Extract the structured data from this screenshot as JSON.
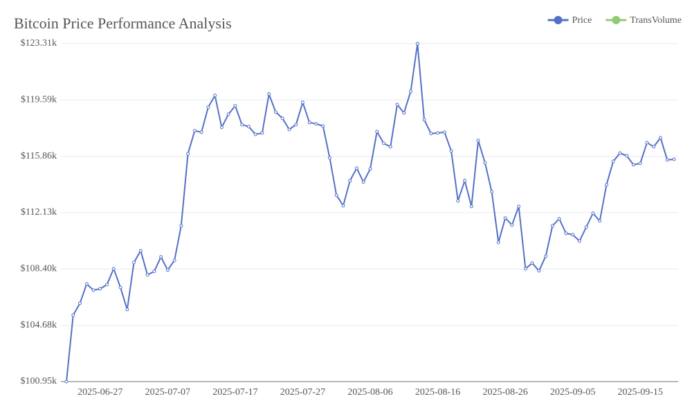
{
  "chart_data": {
    "type": "line",
    "title": "Bitcoin Price Performance Analysis",
    "categories": [
      null,
      null,
      null,
      null,
      null,
      "2025-06-27",
      null,
      null,
      null,
      null,
      null,
      null,
      null,
      null,
      null,
      "2025-07-07",
      null,
      null,
      null,
      null,
      null,
      null,
      null,
      null,
      null,
      "2025-07-17",
      null,
      null,
      null,
      null,
      null,
      null,
      null,
      null,
      null,
      "2025-07-27",
      null,
      null,
      null,
      null,
      null,
      null,
      null,
      null,
      null,
      "2025-08-06",
      null,
      null,
      null,
      null,
      null,
      null,
      null,
      null,
      null,
      "2025-08-16",
      null,
      null,
      null,
      null,
      null,
      null,
      null,
      null,
      null,
      "2025-08-26",
      null,
      null,
      null,
      null,
      null,
      null,
      null,
      null,
      null,
      "2025-09-05",
      null,
      null,
      null,
      null,
      null,
      null,
      null,
      null,
      null,
      "2025-09-15",
      null,
      null,
      null,
      null,
      null
    ],
    "series": [
      {
        "name": "Price",
        "color": "#5470c6",
        "values": [
          100.95,
          105.35,
          106.13,
          107.41,
          107.0,
          107.09,
          107.37,
          108.42,
          107.18,
          105.72,
          108.83,
          109.61,
          108.01,
          108.24,
          109.2,
          108.33,
          108.97,
          111.26,
          116.03,
          117.54,
          117.45,
          119.1,
          119.88,
          117.77,
          118.64,
          119.19,
          117.95,
          117.82,
          117.31,
          117.4,
          119.97,
          118.78,
          118.37,
          117.63,
          117.95,
          119.42,
          118.09,
          118.0,
          117.86,
          115.75,
          113.28,
          112.59,
          114.24,
          115.07,
          114.15,
          115.02,
          117.49,
          116.71,
          116.49,
          119.28,
          118.73,
          120.15,
          123.31,
          118.27,
          117.36,
          117.4,
          117.45,
          116.21,
          112.91,
          114.24,
          112.54,
          116.9,
          115.43,
          113.51,
          110.16,
          111.77,
          111.31,
          112.54,
          108.42,
          108.79,
          108.28,
          109.25,
          111.26,
          111.72,
          110.76,
          110.67,
          110.25,
          111.17,
          112.09,
          111.58,
          113.97,
          115.52,
          116.07,
          115.89,
          115.29,
          115.39,
          116.76,
          116.49,
          117.08,
          115.62,
          115.66
        ]
      },
      {
        "name": "TransVolume",
        "color": "#91cc75"
      }
    ],
    "ylim": [
      100.95,
      123.31
    ],
    "yticks": [
      {
        "value": 100.95,
        "label": "$100.95k"
      },
      {
        "value": 104.68,
        "label": "$104.68k"
      },
      {
        "value": 108.4,
        "label": "$108.40k"
      },
      {
        "value": 112.13,
        "label": "$112.13k"
      },
      {
        "value": 115.86,
        "label": "$115.86k"
      },
      {
        "value": 119.59,
        "label": "$119.59k"
      },
      {
        "value": 123.31,
        "label": "$123.31k"
      }
    ],
    "grid": true,
    "legend": "top-right"
  }
}
